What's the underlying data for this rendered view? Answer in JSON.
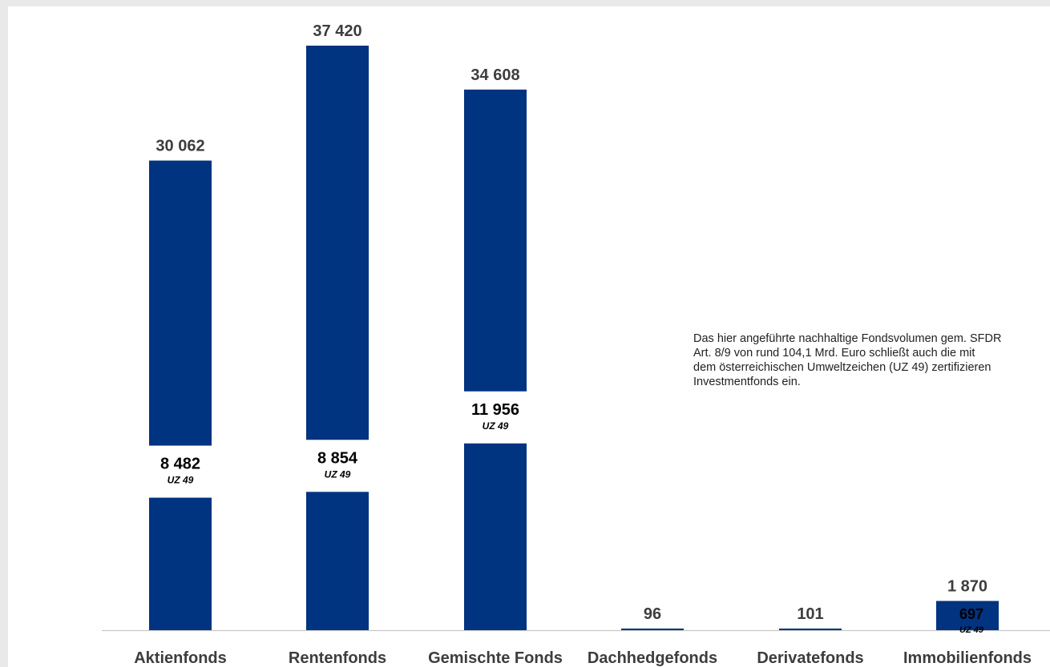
{
  "chart_data": {
    "type": "bar",
    "categories": [
      "Aktienfonds",
      "Rentenfonds",
      "Gemischte Fonds",
      "Dachhedgefonds",
      "Derivatefonds",
      "Immobilienfonds"
    ],
    "series": [
      {
        "values": [
          30062,
          37420,
          34608,
          96,
          101,
          1870
        ],
        "labels": [
          "30 062",
          "37 420",
          "34 608",
          "96",
          "101",
          "1 870"
        ]
      }
    ],
    "sub_values": [
      8482,
      8854,
      11956,
      null,
      null,
      697
    ],
    "sub_labels": [
      "8 482",
      "8 854",
      "11 956",
      "",
      "",
      "697"
    ],
    "sub_tag": "UZ 49",
    "ylim": [
      0,
      37420
    ],
    "grid": false,
    "legend": "none",
    "colors": {
      "bar": "#003380",
      "axis": "#c8c8c8",
      "label": "#3d3d3d",
      "sub_label": "#000000"
    }
  },
  "note": {
    "lines": [
      "Das hier angeführte nachhaltige Fondsvolumen gem. SFDR",
      "Art. 8/9 von rund 104,1 Mrd. Euro schließt auch die mit",
      "dem österreichischen Umweltzeichen (UZ 49) zertifizieren",
      "Investmentfonds ein."
    ]
  }
}
